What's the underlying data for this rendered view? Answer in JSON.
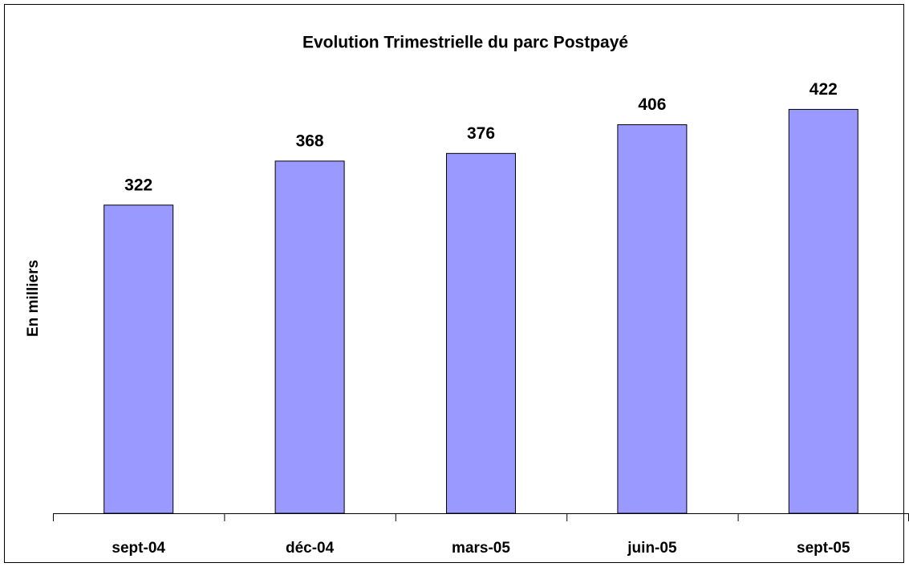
{
  "chart_data": {
    "type": "bar",
    "title": "Evolution Trimestrielle du parc Postpayé",
    "y_label": "En milliers",
    "categories": [
      "sept-04",
      "déc-04",
      "mars-05",
      "juin-05",
      "sept-05"
    ],
    "values": [
      322,
      368,
      376,
      406,
      422
    ],
    "color": "#9999ff",
    "ylim": [
      0,
      450
    ],
    "grid": false
  }
}
